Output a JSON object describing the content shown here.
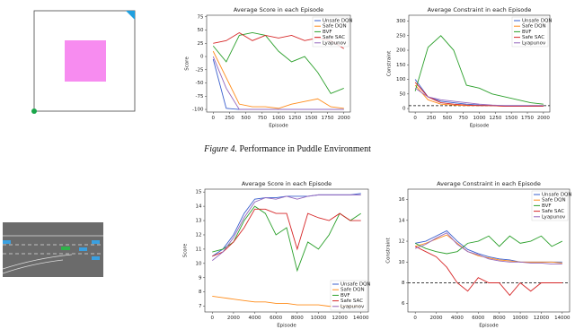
{
  "chart_data": [
    {
      "type": "line",
      "title": "Average Score in each Episode",
      "xlabel": "Episode",
      "ylabel": "Score",
      "x": [
        0,
        200,
        400,
        600,
        800,
        1000,
        1200,
        1400,
        1600,
        1800,
        2000
      ],
      "series": [
        {
          "name": "Unsafe DQN",
          "color": "#3a5fcd",
          "values": [
            -5,
            -98,
            -100,
            -100,
            -100,
            -100,
            -100,
            -100,
            -100,
            -100,
            -100
          ]
        },
        {
          "name": "Safe DQN",
          "color": "#ff8c1a",
          "values": [
            10,
            -40,
            -90,
            -95,
            -95,
            -98,
            -90,
            -85,
            -80,
            -95,
            -98
          ]
        },
        {
          "name": "BVF",
          "color": "#2ca02c",
          "values": [
            20,
            -10,
            40,
            45,
            40,
            10,
            -10,
            0,
            -30,
            -70,
            -60
          ]
        },
        {
          "name": "Safe SAC",
          "color": "#d62728",
          "values": [
            25,
            30,
            45,
            30,
            40,
            35,
            40,
            30,
            35,
            30,
            15
          ]
        },
        {
          "name": "Lyapunov",
          "color": "#9467bd",
          "values": [
            0,
            -60,
            -100,
            -100,
            -100,
            -100,
            -100,
            -100,
            -100,
            -100,
            -100
          ]
        }
      ],
      "xlim": [
        -100,
        2100
      ],
      "ylim": [
        -105,
        78
      ],
      "xticks": [
        0,
        250,
        500,
        750,
        1000,
        1250,
        1500,
        1750,
        2000
      ],
      "yticks": [
        -100,
        -75,
        -50,
        -25,
        0,
        25,
        50,
        75
      ],
      "legend": "upper right"
    },
    {
      "type": "line",
      "title": "Average Constraint in each Episode",
      "xlabel": "Episode",
      "ylabel": "Constraint",
      "x": [
        0,
        200,
        400,
        600,
        800,
        1000,
        1200,
        1400,
        1600,
        1800,
        2000
      ],
      "series": [
        {
          "name": "Unsafe DQN",
          "color": "#3a5fcd",
          "values": [
            100,
            40,
            25,
            20,
            15,
            12,
            10,
            10,
            10,
            10,
            10
          ]
        },
        {
          "name": "Safe DQN",
          "color": "#ff8c1a",
          "values": [
            80,
            30,
            15,
            12,
            10,
            10,
            10,
            8,
            8,
            10,
            10
          ]
        },
        {
          "name": "BVF",
          "color": "#2ca02c",
          "values": [
            60,
            210,
            250,
            200,
            80,
            70,
            50,
            40,
            30,
            20,
            15
          ]
        },
        {
          "name": "Safe SAC",
          "color": "#d62728",
          "values": [
            90,
            40,
            20,
            15,
            12,
            10,
            10,
            8,
            8,
            8,
            8
          ]
        },
        {
          "name": "Lyapunov",
          "color": "#9467bd",
          "values": [
            70,
            40,
            30,
            25,
            20,
            15,
            12,
            10,
            10,
            10,
            10
          ]
        }
      ],
      "xlim": [
        -100,
        2100
      ],
      "ylim": [
        -12,
        320
      ],
      "xticks": [
        0,
        250,
        500,
        750,
        1000,
        1250,
        1500,
        1750,
        2000
      ],
      "yticks": [
        0,
        50,
        100,
        150,
        200,
        250,
        300
      ],
      "hline": 10,
      "legend": "upper right"
    },
    {
      "type": "line",
      "title": "Average Score in each Episode",
      "xlabel": "Episode",
      "ylabel": "Score",
      "x": [
        0,
        1000,
        2000,
        3000,
        4000,
        5000,
        6000,
        7000,
        8000,
        9000,
        10000,
        11000,
        12000,
        13000,
        14000
      ],
      "series": [
        {
          "name": "Unsafe DQN",
          "color": "#3a5fcd",
          "values": [
            10.5,
            11,
            12,
            13.5,
            14.5,
            14.6,
            14.6,
            14.7,
            14.7,
            14.7,
            14.8,
            14.8,
            14.8,
            14.8,
            14.9
          ]
        },
        {
          "name": "Safe DQN",
          "color": "#ff8c1a",
          "values": [
            7.7,
            7.6,
            7.5,
            7.4,
            7.3,
            7.3,
            7.2,
            7.2,
            7.1,
            7.1,
            7.1,
            7.0,
            7.0,
            7.0,
            7.0
          ]
        },
        {
          "name": "BVF",
          "color": "#2ca02c",
          "values": [
            10.8,
            11,
            11.5,
            13,
            14,
            13.5,
            12,
            12.5,
            9.5,
            11.5,
            11,
            12,
            13.5,
            13,
            13.5
          ]
        },
        {
          "name": "Safe SAC",
          "color": "#d62728",
          "values": [
            10.5,
            10.8,
            11.5,
            12.5,
            13.8,
            13.8,
            13.5,
            13.5,
            11,
            13.5,
            13.2,
            13,
            13.5,
            13,
            13
          ]
        },
        {
          "name": "Lyapunov",
          "color": "#9467bd",
          "values": [
            10.2,
            10.8,
            11.8,
            13.2,
            14.3,
            14.6,
            14.5,
            14.7,
            14.5,
            14.7,
            14.8,
            14.8,
            14.8,
            14.8,
            14.8
          ]
        }
      ],
      "xlim": [
        -700,
        14700
      ],
      "ylim": [
        6.6,
        15.2
      ],
      "xticks": [
        0,
        2000,
        4000,
        6000,
        8000,
        10000,
        12000,
        14000
      ],
      "yticks": [
        7,
        8,
        9,
        10,
        11,
        12,
        13,
        14,
        15
      ],
      "legend": "lower right"
    },
    {
      "type": "line",
      "title": "Average Constraint in each Episode",
      "xlabel": "Episode",
      "ylabel": "Constraint",
      "x": [
        0,
        1000,
        2000,
        3000,
        4000,
        5000,
        6000,
        7000,
        8000,
        9000,
        10000,
        11000,
        12000,
        13000,
        14000
      ],
      "series": [
        {
          "name": "Unsafe DQN",
          "color": "#3a5fcd",
          "values": [
            11.8,
            12,
            12.5,
            13,
            12,
            11.2,
            10.8,
            10.5,
            10.3,
            10.2,
            10,
            10,
            10,
            10,
            10
          ]
        },
        {
          "name": "Safe DQN",
          "color": "#ff8c1a",
          "values": [
            11.5,
            11.8,
            12.2,
            12.6,
            11.8,
            11,
            10.6,
            10.4,
            10.2,
            10.1,
            10,
            10,
            10,
            10,
            9.9
          ]
        },
        {
          "name": "BVF",
          "color": "#2ca02c",
          "values": [
            11.8,
            11.3,
            11,
            10.8,
            11,
            11.8,
            12,
            12.5,
            11.5,
            12.5,
            11.8,
            12,
            12.5,
            11.5,
            12
          ]
        },
        {
          "name": "Safe SAC",
          "color": "#d62728",
          "values": [
            11.5,
            11,
            10.5,
            9.5,
            8,
            7.2,
            8.5,
            8,
            8,
            6.8,
            8,
            7.2,
            8,
            8,
            8
          ]
        },
        {
          "name": "Lyapunov",
          "color": "#9467bd",
          "values": [
            11.3,
            11.7,
            12.3,
            12.8,
            11.7,
            11,
            10.7,
            10.3,
            10.1,
            10,
            10,
            9.9,
            9.9,
            9.8,
            9.8
          ]
        }
      ],
      "xlim": [
        -700,
        14700
      ],
      "ylim": [
        5.2,
        17
      ],
      "xticks": [
        0,
        2000,
        4000,
        6000,
        8000,
        10000,
        12000,
        14000
      ],
      "yticks": [
        6,
        8,
        10,
        12,
        14,
        16
      ],
      "hline": 8,
      "legend": "upper right"
    }
  ],
  "caption": {
    "label": "Figure 4.",
    "text": "Performance in Puddle Environment"
  }
}
